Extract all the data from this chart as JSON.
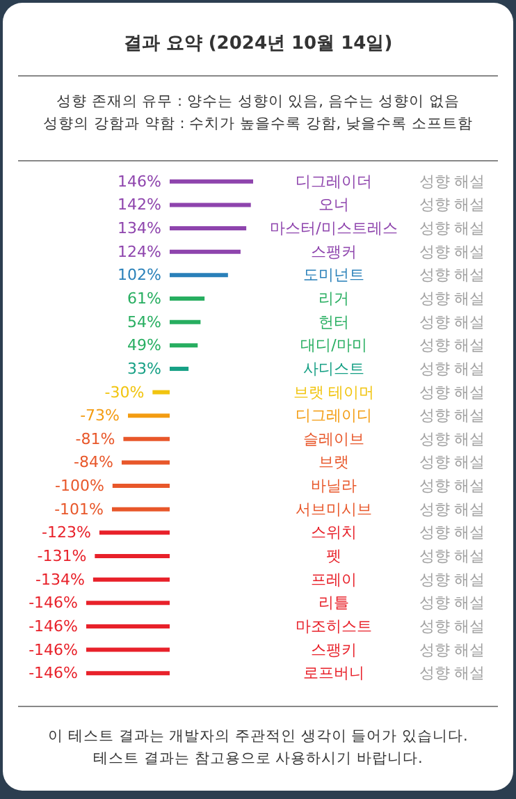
{
  "chart_data": {
    "type": "bar",
    "orientation": "horizontal",
    "title": "결과 요약 (2024년 10월 14일)",
    "subtitle": "성향 존재의 유무 : 양수는 성향이 있음, 음수는 성향이 없음\n성향의 강함과 약함 : 수치가 높을수록 강함, 낮을수록 소프트함",
    "categories": [
      "디그레이더",
      "오너",
      "마스터/미스트레스",
      "스팽커",
      "도미넌트",
      "리거",
      "헌터",
      "대디/마미",
      "사디스트",
      "브랫 테이머",
      "디그레이디",
      "슬레이브",
      "브랫",
      "바닐라",
      "서브미시브",
      "스위치",
      "펫",
      "프레이",
      "리틀",
      "마조히스트",
      "스팽키",
      "로프버니"
    ],
    "values": [
      146,
      142,
      134,
      124,
      102,
      61,
      54,
      49,
      33,
      -30,
      -73,
      -81,
      -84,
      -100,
      -101,
      -123,
      -131,
      -134,
      -146,
      -146,
      -146,
      -146
    ],
    "value_labels": [
      "146%",
      "142%",
      "134%",
      "124%",
      "102%",
      "61%",
      "54%",
      "49%",
      "33%",
      "-30%",
      "-73%",
      "-81%",
      "-84%",
      "-100%",
      "-101%",
      "-123%",
      "-131%",
      "-134%",
      "-146%",
      "-146%",
      "-146%",
      "-146%"
    ],
    "colors": [
      "#8e44ad",
      "#8e44ad",
      "#8e44ad",
      "#8e44ad",
      "#2980b9",
      "#27ae60",
      "#27ae60",
      "#27ae60",
      "#16a085",
      "#f1c40f",
      "#f39c12",
      "#e8572a",
      "#e8572a",
      "#e8572a",
      "#e8572a",
      "#e8212a",
      "#e8212a",
      "#e8212a",
      "#e8212a",
      "#e8212a",
      "#e8212a",
      "#e8212a"
    ],
    "annotations": [
      "성향 해설",
      "성향 해설",
      "성향 해설",
      "성향 해설",
      "성향 해설",
      "성향 해설",
      "성향 해설",
      "성향 해설",
      "성향 해설",
      "성향 해설",
      "성향 해설",
      "성향 해설",
      "성향 해설",
      "성향 해설",
      "성향 해설",
      "성향 해설",
      "성향 해설",
      "성향 해설",
      "성향 해설",
      "성향 해설",
      "성향 해설",
      "성향 해설",
      "이 테스트 결과는 개발자의 주관적인 생각이 들어가 있습니다.",
      "테스트 결과는 참고용으로 사용하시기 바랍니다."
    ],
    "data_labels": true
  }
}
